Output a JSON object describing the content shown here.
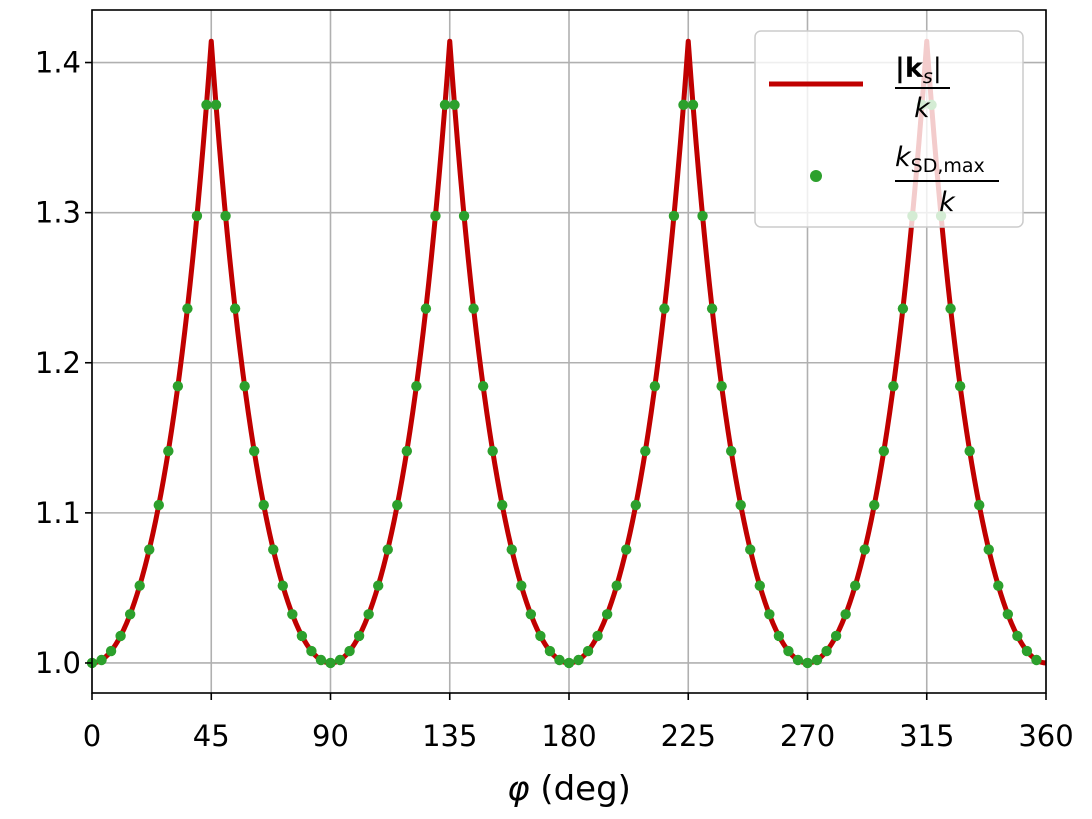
{
  "chart_data": {
    "type": "line",
    "xlabel": "φ (deg)",
    "ylabel": "",
    "xlim": [
      0,
      360
    ],
    "ylim": [
      0.98,
      1.435
    ],
    "grid": true,
    "x_ticks": [
      0,
      45,
      90,
      135,
      180,
      225,
      270,
      315,
      360
    ],
    "x_tick_labels": [
      "0",
      "45",
      "90",
      "135",
      "180",
      "225",
      "270",
      "315",
      "360"
    ],
    "y_ticks": [
      1.0,
      1.1,
      1.2,
      1.3,
      1.4
    ],
    "y_tick_labels": [
      "1.0",
      "1.1",
      "1.2",
      "1.3",
      "1.4"
    ],
    "legend_position": "top-right",
    "series": [
      {
        "name": "|k_s| / k",
        "legend_numerator": "|k",
        "legend_numerator_sub": "s",
        "legend_numerator_close": "|",
        "legend_denominator": "k",
        "style": "line",
        "color": "#c00000",
        "formula": "1/max(|cos φ|, |sin φ|)",
        "x_step": 1
      },
      {
        "name": "k_SD,max / k",
        "legend_numerator": "k",
        "legend_numerator_sub": "SD,max",
        "legend_denominator": "k",
        "style": "scatter",
        "color": "#2ca02c",
        "formula": "1/max(|cos φ|, |sin φ|)",
        "x_step": 3.6
      }
    ]
  }
}
